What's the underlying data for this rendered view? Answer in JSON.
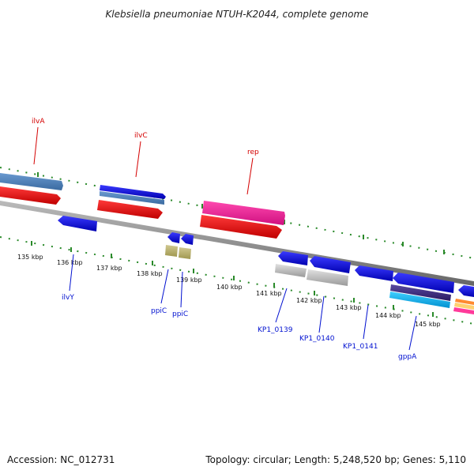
{
  "title": "Klebsiella pneumoniae NTUH-K2044, complete genome",
  "footer": {
    "accession": "Accession: NC_012731",
    "summary": "Topology: circular; Length: 5,248,520 bp; Genes: 5,110"
  },
  "ticks": [
    "135 kbp",
    "136 kbp",
    "137 kbp",
    "138 kbp",
    "139 kbp",
    "140 kbp",
    "141 kbp",
    "142 kbp",
    "143 kbp",
    "144 kbp",
    "145 kbp"
  ],
  "labels": {
    "forward": [
      "ilvA",
      "ilvC",
      "rep"
    ],
    "reverse": [
      "ilvY",
      "ppiC",
      "ppiC",
      "KP1_0139",
      "KP1_0140",
      "KP1_0141",
      "gppA"
    ]
  },
  "colors": {
    "backbone": "#888888",
    "forward_label": "#d40000",
    "reverse_label": "#0010d0",
    "tick": "#2a8a2a"
  }
}
